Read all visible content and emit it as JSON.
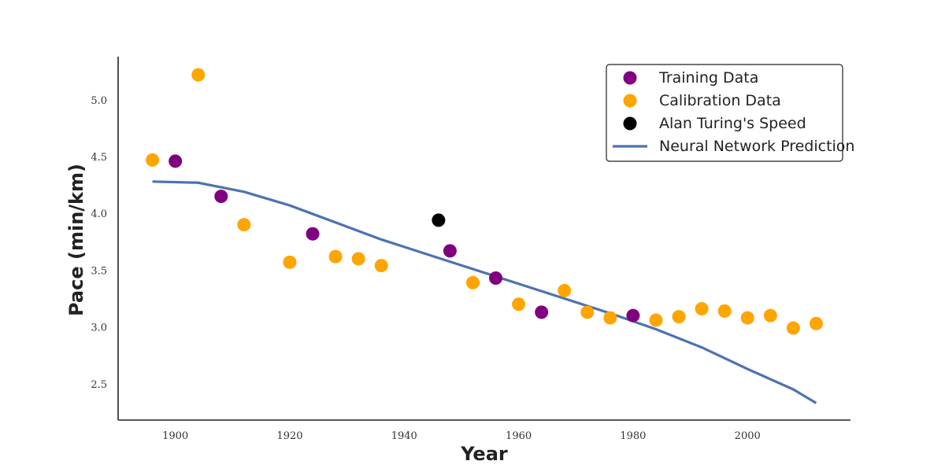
{
  "chart_data": {
    "type": "scatter",
    "xlabel": "Year",
    "ylabel": "Pace (min/km)",
    "xlim": [
      1890,
      2018
    ],
    "ylim": [
      2.18,
      5.38
    ],
    "x_ticks": [
      1900,
      1920,
      1940,
      1960,
      1980,
      2000
    ],
    "y_ticks": [
      2.5,
      3.0,
      3.5,
      4.0,
      4.5,
      5.0
    ],
    "x_tick_labels": [
      "1900",
      "1920",
      "1940",
      "1960",
      "1980",
      "2000"
    ],
    "y_tick_labels": [
      "2.5",
      "3.0",
      "3.5",
      "4.0",
      "4.5",
      "5.0"
    ],
    "grid": false,
    "legend_position": "top-right",
    "series": [
      {
        "name": "Training Data",
        "kind": "scatter",
        "color": "#800080",
        "points": [
          [
            1900,
            4.46
          ],
          [
            1908,
            4.15
          ],
          [
            1924,
            3.82
          ],
          [
            1948,
            3.67
          ],
          [
            1956,
            3.43
          ],
          [
            1964,
            3.13
          ],
          [
            1980,
            3.1
          ]
        ]
      },
      {
        "name": "Calibration Data",
        "kind": "scatter",
        "color": "#ffa500",
        "points": [
          [
            1896,
            4.47
          ],
          [
            1904,
            5.22
          ],
          [
            1912,
            3.9
          ],
          [
            1920,
            3.57
          ],
          [
            1928,
            3.62
          ],
          [
            1932,
            3.6
          ],
          [
            1936,
            3.54
          ],
          [
            1952,
            3.39
          ],
          [
            1960,
            3.2
          ],
          [
            1968,
            3.32
          ],
          [
            1972,
            3.13
          ],
          [
            1976,
            3.08
          ],
          [
            1984,
            3.06
          ],
          [
            1988,
            3.09
          ],
          [
            1992,
            3.16
          ],
          [
            1996,
            3.14
          ],
          [
            2000,
            3.08
          ],
          [
            2004,
            3.1
          ],
          [
            2008,
            2.99
          ],
          [
            2012,
            3.03
          ]
        ]
      },
      {
        "name": "Alan Turing's Speed",
        "kind": "scatter",
        "color": "#000000",
        "points": [
          [
            1946,
            3.94
          ]
        ]
      },
      {
        "name": "Neural Network Prediction",
        "kind": "line",
        "color": "#4c72b0",
        "points": [
          [
            1896,
            4.28
          ],
          [
            1904,
            4.27
          ],
          [
            1912,
            4.19
          ],
          [
            1920,
            4.07
          ],
          [
            1928,
            3.92
          ],
          [
            1936,
            3.77
          ],
          [
            1944,
            3.64
          ],
          [
            1952,
            3.51
          ],
          [
            1960,
            3.38
          ],
          [
            1968,
            3.25
          ],
          [
            1976,
            3.12
          ],
          [
            1984,
            2.98
          ],
          [
            1992,
            2.82
          ],
          [
            2000,
            2.63
          ],
          [
            2008,
            2.45
          ],
          [
            2012,
            2.33
          ]
        ]
      }
    ]
  }
}
